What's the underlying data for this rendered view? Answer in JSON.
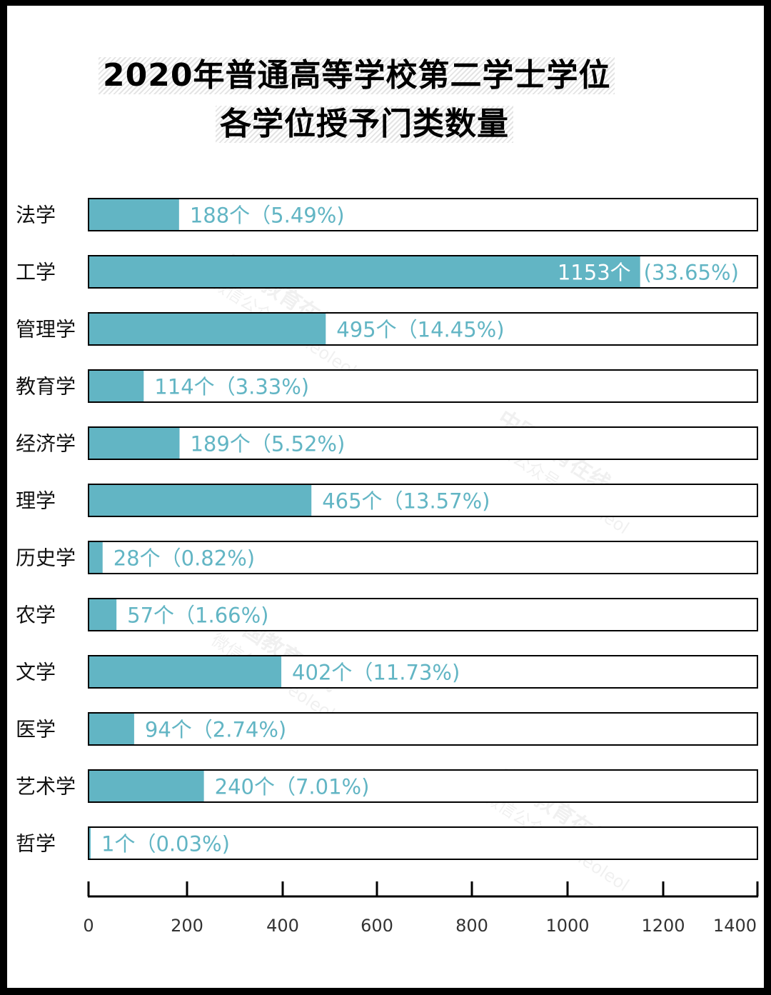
{
  "chart_data": {
    "type": "bar",
    "orientation": "horizontal",
    "title_lines": [
      "2020年普通高等学校第二学士学位",
      "各学位授予门类数量"
    ],
    "categories": [
      "法学",
      "工学",
      "管理学",
      "教育学",
      "经济学",
      "理学",
      "历史学",
      "农学",
      "文学",
      "医学",
      "艺术学",
      "哲学"
    ],
    "values": [
      188,
      1153,
      495,
      114,
      189,
      465,
      28,
      57,
      402,
      94,
      240,
      1
    ],
    "value_labels": [
      "188个（5.49%)",
      "1153个",
      "495个（14.45%)",
      "114个（3.33%)",
      "189个（5.52%)",
      "465个（13.57%)",
      "28个（0.82%)",
      "57个（1.66%)",
      "402个（11.73%)",
      "94个（2.74%)",
      "240个（7.01%)",
      "1个（0.03%)"
    ],
    "extra_labels": {
      "1": "(33.65%)"
    },
    "xlim": [
      0,
      1400
    ],
    "xticks": [
      "0",
      "200",
      "400",
      "600",
      "800",
      "1000",
      "1200",
      "1400"
    ],
    "grid": false,
    "colors": {
      "bar": "#62b5c4",
      "label": "#62b5c4",
      "frame": "#000000"
    }
  },
  "watermark": {
    "line1": "中国教育在线",
    "line2": "微信公众号 eoleoleol"
  }
}
